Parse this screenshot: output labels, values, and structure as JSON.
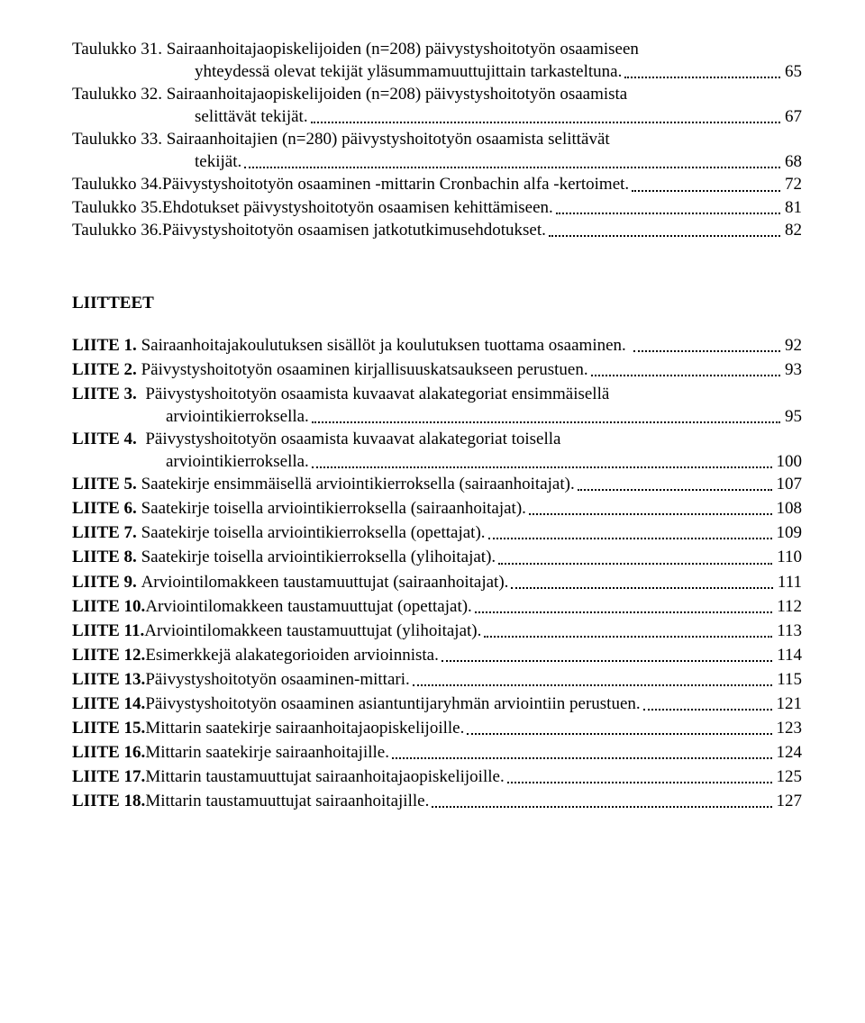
{
  "taulukot": [
    {
      "label": "Taulukko 31.",
      "line1": "Sairaanhoitajaopiskelijoiden (n=208) päivystyshoitotyön osaamiseen",
      "line2": "yhteydessä olevat tekijät yläsummamuuttujittain tarkasteltuna.",
      "page": "65"
    },
    {
      "label": "Taulukko 32.",
      "line1": "Sairaanhoitajaopiskelijoiden (n=208) päivystyshoitotyön osaamista",
      "line2": "selittävät tekijät.",
      "page": "67"
    },
    {
      "label": "Taulukko 33.",
      "line1": "Sairaanhoitajien (n=280) päivystyshoitotyön osaamista selittävät",
      "line2": "tekijät.",
      "page": "68"
    },
    {
      "label": "Taulukko 34.",
      "desc": "Päivystyshoitotyön osaaminen -mittarin Cronbachin alfa -kertoimet.",
      "page": "72"
    },
    {
      "label": "Taulukko 35.",
      "desc": "Ehdotukset päivystyshoitotyön osaamisen kehittämiseen.",
      "page": "81"
    },
    {
      "label": "Taulukko 36.",
      "desc": "Päivystyshoitotyön osaamisen jatkotutkimusehdotukset.",
      "page": "82"
    }
  ],
  "liitteet_heading": "LIITTEET",
  "liitteet": [
    {
      "label": "LIITE 1.",
      "desc": "Sairaanhoitajakoulutuksen sisällöt ja koulutuksen tuottama osaaminen. ",
      "page": "92"
    },
    {
      "label": "LIITE 2.",
      "desc": "Päivystyshoitotyön osaaminen kirjallisuuskatsaukseen perustuen.",
      "page": "93"
    },
    {
      "label": "LIITE 3.",
      "line1": "Päivystyshoitotyön osaamista kuvaavat alakategoriat ensimmäisellä",
      "line2": "arviointikierroksella.",
      "page": "95"
    },
    {
      "label": "LIITE 4.",
      "line1": "Päivystyshoitotyön osaamista kuvaavat alakategoriat toisella",
      "line2": "arviointikierroksella.",
      "page": "100"
    },
    {
      "label": "LIITE 5.",
      "desc": "Saatekirje ensimmäisellä arviointikierroksella (sairaanhoitajat).",
      "page": "107"
    },
    {
      "label": "LIITE 6.",
      "desc": "Saatekirje toisella arviointikierroksella (sairaanhoitajat).",
      "page": "108"
    },
    {
      "label": "LIITE 7.",
      "desc": "Saatekirje toisella arviointikierroksella (opettajat).",
      "page": "109"
    },
    {
      "label": "LIITE 8.",
      "desc": "Saatekirje toisella arviointikierroksella (ylihoitajat).",
      "page": "110"
    },
    {
      "label": "LIITE 9.",
      "desc": "Arviointilomakkeen taustamuuttujat (sairaanhoitajat).",
      "page": "111"
    },
    {
      "label": "LIITE 10.",
      "desc": "Arviointilomakkeen taustamuuttujat (opettajat).",
      "page": "112"
    },
    {
      "label": "LIITE 11.",
      "desc": "Arviointilomakkeen taustamuuttujat (ylihoitajat).",
      "page": "113"
    },
    {
      "label": "LIITE 12.",
      "desc": "Esimerkkejä alakategorioiden arvioinnista.",
      "page": "114"
    },
    {
      "label": "LIITE 13.",
      "desc": "Päivystyshoitotyön osaaminen-mittari.",
      "page": "115"
    },
    {
      "label": "LIITE 14.",
      "desc": "Päivystyshoitotyön osaaminen asiantuntijaryhmän arviointiin perustuen.",
      "page": "121"
    },
    {
      "label": "LIITE 15.",
      "desc": "Mittarin saatekirje sairaanhoitajaopiskelijoille.",
      "page": "123"
    },
    {
      "label": "LIITE 16.",
      "desc": "Mittarin saatekirje sairaanhoitajille.",
      "page": "124"
    },
    {
      "label": "LIITE 17.",
      "desc": "Mittarin taustamuuttujat sairaanhoitajaopiskelijoille.",
      "page": "125"
    },
    {
      "label": "LIITE 18.",
      "desc": "Mittarin taustamuuttujat sairaanhoitajille.",
      "page": "127"
    }
  ]
}
